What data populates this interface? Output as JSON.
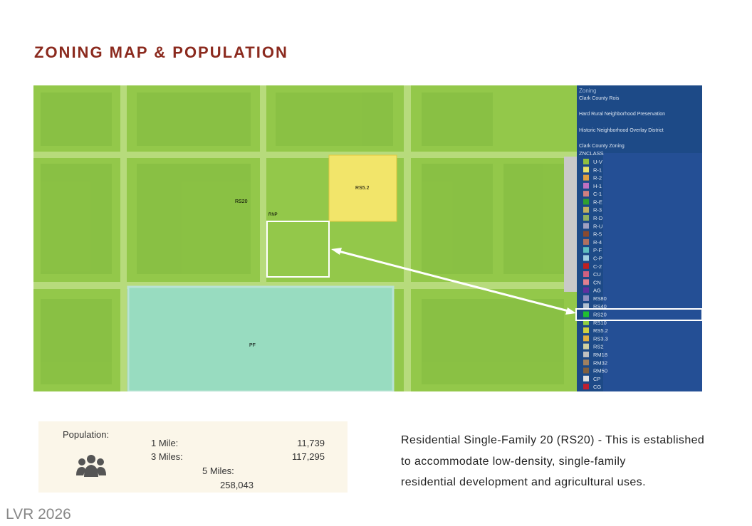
{
  "header": {
    "title": "ZONING MAP & POPULATION"
  },
  "map": {
    "labels": {
      "rs20": "RS20",
      "rs52": "RS5.2",
      "rnp": "RNP",
      "pf": "PF"
    },
    "legend": {
      "heading": "Zoning",
      "layers": [
        "Clark County Rois",
        "Hard Rural Neighborhood Preservation",
        "Historic Neighborhood Overlay District",
        "Clark County Zoning"
      ],
      "class_heading": "ZNCLASS",
      "items": [
        {
          "label": "U-V",
          "color": "#8fbf3f"
        },
        {
          "label": "R-1",
          "color": "#e8e06a"
        },
        {
          "label": "R-2",
          "color": "#e0a040"
        },
        {
          "label": "H-1",
          "color": "#c070c0"
        },
        {
          "label": "C-1",
          "color": "#d08080"
        },
        {
          "label": "R-E",
          "color": "#30a030"
        },
        {
          "label": "R-3",
          "color": "#c0b060"
        },
        {
          "label": "R-D",
          "color": "#90b060"
        },
        {
          "label": "R-U",
          "color": "#a0a0c0"
        },
        {
          "label": "R-5",
          "color": "#8a4a30"
        },
        {
          "label": "R-4",
          "color": "#b07060"
        },
        {
          "label": "P-F",
          "color": "#60c0c0"
        },
        {
          "label": "C-P",
          "color": "#a0d0e0"
        },
        {
          "label": "C-2",
          "color": "#c02020"
        },
        {
          "label": "CU",
          "color": "#d06080"
        },
        {
          "label": "CN",
          "color": "#e08090"
        },
        {
          "label": "AG",
          "color": "#6030a0"
        },
        {
          "label": "RS80",
          "color": "#9090c0"
        },
        {
          "label": "RS40",
          "color": "#b0c0d0"
        },
        {
          "label": "RS20",
          "color": "#20c030"
        },
        {
          "label": "RS10",
          "color": "#90d040"
        },
        {
          "label": "RS5.2",
          "color": "#d0d040"
        },
        {
          "label": "RS3.3",
          "color": "#e0b040"
        },
        {
          "label": "RS2",
          "color": "#d0d0a0"
        },
        {
          "label": "RM18",
          "color": "#c0c0c0"
        },
        {
          "label": "RM32",
          "color": "#a08060"
        },
        {
          "label": "RM50",
          "color": "#806040"
        },
        {
          "label": "CP",
          "color": "#e0e0e0"
        },
        {
          "label": "CG",
          "color": "#c02030"
        }
      ]
    }
  },
  "population": {
    "heading": "Population:",
    "rows": [
      {
        "label": "1 Mile:",
        "value": "11,739"
      },
      {
        "label": "3 Miles:",
        "value": "117,295"
      },
      {
        "label": "5 Miles:",
        "value": "258,043"
      }
    ]
  },
  "description": {
    "lines": [
      "Residential Single-Family 20 (RS20)  - This is established",
      "to accommodate low-density, single-family",
      "residential development and agricultural uses."
    ]
  },
  "footer": {
    "watermark": "LVR 2026"
  }
}
